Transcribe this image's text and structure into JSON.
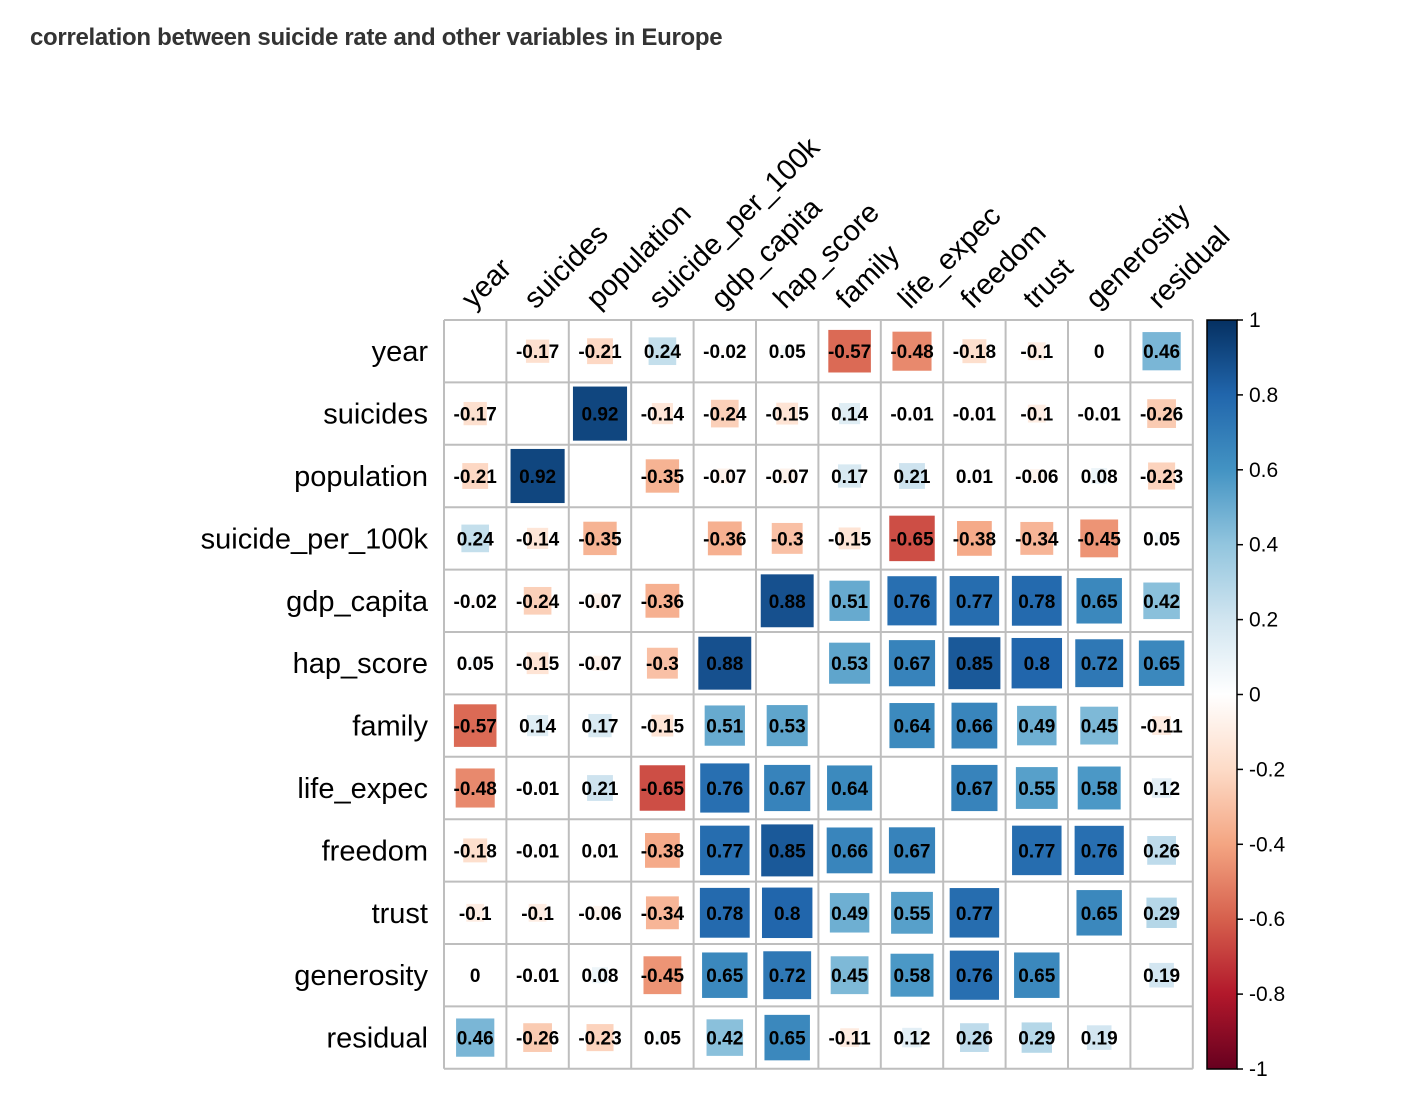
{
  "title": "correlation between suicide rate and other variables in Europe",
  "chart_data": {
    "type": "heatmap",
    "title": "correlation between suicide rate and other variables in Europe",
    "variables": [
      "year",
      "suicides",
      "population",
      "suicide_per_100k",
      "gdp_capita",
      "hap_score",
      "family",
      "life_expec",
      "freedom",
      "trust",
      "generosity",
      "residual"
    ],
    "matrix": [
      [
        null,
        -0.17,
        -0.21,
        0.24,
        -0.02,
        0.05,
        -0.57,
        -0.48,
        -0.18,
        -0.1,
        0,
        0.46
      ],
      [
        -0.17,
        null,
        0.92,
        -0.14,
        -0.24,
        -0.15,
        0.14,
        -0.01,
        -0.01,
        -0.1,
        -0.01,
        -0.26
      ],
      [
        -0.21,
        0.92,
        null,
        -0.35,
        -0.07,
        -0.07,
        0.17,
        0.21,
        0.01,
        -0.06,
        0.08,
        -0.23
      ],
      [
        0.24,
        -0.14,
        -0.35,
        null,
        -0.36,
        -0.3,
        -0.15,
        -0.65,
        -0.38,
        -0.34,
        -0.45,
        0.05
      ],
      [
        -0.02,
        -0.24,
        -0.07,
        -0.36,
        null,
        0.88,
        0.51,
        0.76,
        0.77,
        0.78,
        0.65,
        0.42
      ],
      [
        0.05,
        -0.15,
        -0.07,
        -0.3,
        0.88,
        null,
        0.53,
        0.67,
        0.85,
        0.8,
        0.72,
        0.65
      ],
      [
        -0.57,
        0.14,
        0.17,
        -0.15,
        0.51,
        0.53,
        null,
        0.64,
        0.66,
        0.49,
        0.45,
        -0.11
      ],
      [
        -0.48,
        -0.01,
        0.21,
        -0.65,
        0.76,
        0.67,
        0.64,
        null,
        0.67,
        0.55,
        0.58,
        0.12
      ],
      [
        -0.18,
        -0.01,
        0.01,
        -0.38,
        0.77,
        0.85,
        0.66,
        0.67,
        null,
        0.77,
        0.76,
        0.26
      ],
      [
        -0.1,
        -0.1,
        -0.06,
        -0.34,
        0.78,
        0.8,
        0.49,
        0.55,
        0.77,
        null,
        0.65,
        0.29
      ],
      [
        0,
        -0.01,
        0.08,
        -0.45,
        0.65,
        0.72,
        0.45,
        0.58,
        0.76,
        0.65,
        null,
        0.19
      ],
      [
        0.46,
        -0.26,
        -0.23,
        0.05,
        0.42,
        0.65,
        -0.11,
        0.12,
        0.26,
        0.29,
        0.19,
        null
      ]
    ],
    "colorbar": {
      "range": [
        -1,
        1
      ],
      "ticks": [
        "1",
        "0.8",
        "0.6",
        "0.4",
        "0.2",
        "0",
        "-0.2",
        "-0.4",
        "-0.6",
        "-0.8",
        "-1"
      ],
      "palette": [
        "#67001F",
        "#B2182B",
        "#D6604D",
        "#F4A582",
        "#FDDBC7",
        "#FFFFFF",
        "#D1E5F0",
        "#92C5DE",
        "#4393C3",
        "#2166AC",
        "#053061"
      ]
    },
    "grid_color": "#BEBEBE"
  }
}
